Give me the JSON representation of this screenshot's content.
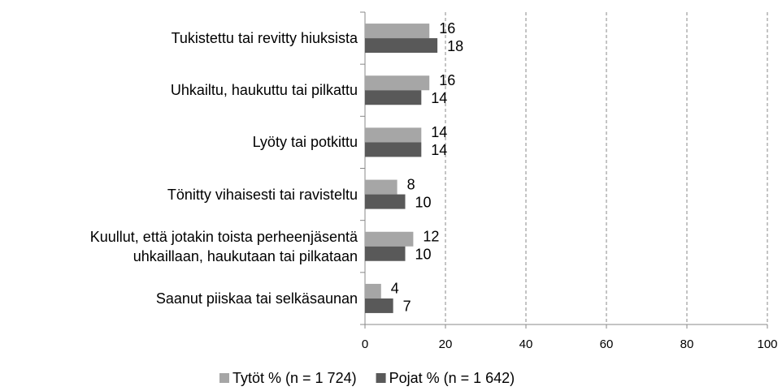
{
  "chart_data": {
    "type": "bar",
    "orientation": "horizontal",
    "categories": [
      "Tukistettu tai revitty hiuksista",
      "Uhkailtu, haukuttu tai pilkattu",
      "Lyöty tai potkittu",
      "Tönitty vihaisesti tai ravisteltu",
      "Kuullut, että jotakin toista perheenjäsentä\nuhkaillaan, haukutaan tai pilkataan",
      "Saanut piiskaa tai selkäsaunan"
    ],
    "series": [
      {
        "name": "Tytöt % (n = 1 724)",
        "color": "#a6a6a6",
        "values": [
          16,
          16,
          14,
          8,
          12,
          4
        ]
      },
      {
        "name": "Pojat % (n = 1 642)",
        "color": "#595959",
        "values": [
          18,
          14,
          14,
          10,
          10,
          7
        ]
      }
    ],
    "xlim": [
      0,
      100
    ],
    "xticks": [
      0,
      20,
      40,
      60,
      80,
      100
    ],
    "grid": true,
    "legend": "bottom"
  }
}
